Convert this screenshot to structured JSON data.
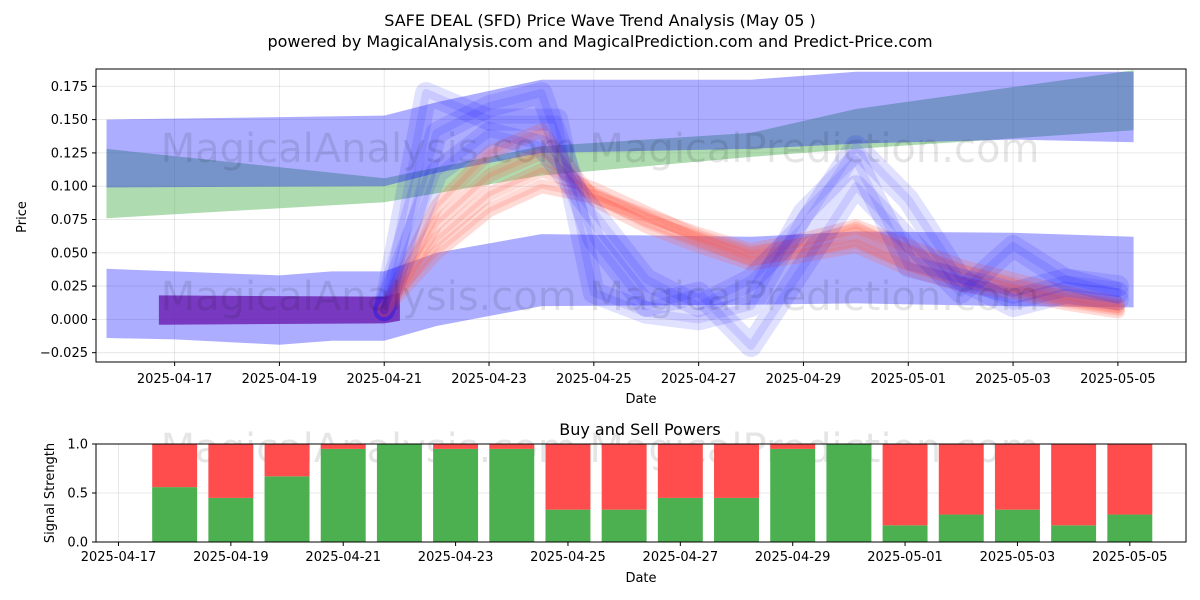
{
  "title_line1": "SAFE DEAL (SFD) Price Wave Trend Analysis (May 05 )",
  "title_line2": "powered by MagicalAnalysis.com and MagicalPrediction.com and Predict-Price.com",
  "watermark": "MagicalAnalysis.com   MagicalPrediction.com",
  "chart_data": [
    {
      "type": "area",
      "xlabel": "Date",
      "ylabel": "Price",
      "xlim": [
        "2025-04-15.5",
        "2025-05-06.3"
      ],
      "ylim": [
        -0.032,
        0.188
      ],
      "x_ticks": [
        "2025-04-17",
        "2025-04-19",
        "2025-04-21",
        "2025-04-23",
        "2025-04-25",
        "2025-04-27",
        "2025-04-29",
        "2025-05-01",
        "2025-05-03",
        "2025-05-05"
      ],
      "y_ticks": [
        "−0.025",
        "0.000",
        "0.025",
        "0.050",
        "0.075",
        "0.100",
        "0.125",
        "0.150",
        "0.175"
      ],
      "grid": true,
      "colors": {
        "green_band": "#4caf50",
        "blue_band": "#0000ff",
        "red_band": "#ff5a4a",
        "purple_band": "#6a1bb0"
      },
      "bands": {
        "green_upper": {
          "x": [
            "2025-04-15.7",
            "2025-04-21",
            "2025-04-24",
            "2025-04-28",
            "2025-04-30",
            "2025-05-05.3"
          ],
          "low": [
            0.076,
            0.088,
            0.108,
            0.122,
            0.128,
            0.142
          ],
          "high": [
            0.128,
            0.106,
            0.13,
            0.14,
            0.158,
            0.187
          ]
        },
        "blue_upper": {
          "x": [
            "2025-04-15.7",
            "2025-04-21",
            "2025-04-22",
            "2025-04-24",
            "2025-04-28",
            "2025-04-30",
            "2025-05-03",
            "2025-05-05.3"
          ],
          "low": [
            0.099,
            0.1,
            0.11,
            0.125,
            0.128,
            0.132,
            0.135,
            0.133
          ],
          "high": [
            0.15,
            0.153,
            0.163,
            0.18,
            0.18,
            0.186,
            0.186,
            0.186
          ]
        },
        "blue_lower": {
          "x": [
            "2025-04-15.7",
            "2025-04-17",
            "2025-04-19",
            "2025-04-20",
            "2025-04-21",
            "2025-04-22",
            "2025-04-24",
            "2025-04-28",
            "2025-04-30",
            "2025-05-03",
            "2025-05-05.3"
          ],
          "low": [
            -0.014,
            -0.015,
            -0.019,
            -0.016,
            -0.016,
            -0.005,
            0.01,
            0.011,
            0.012,
            0.01,
            0.009
          ],
          "high": [
            0.038,
            0.036,
            0.033,
            0.036,
            0.036,
            0.05,
            0.064,
            0.062,
            0.066,
            0.065,
            0.062
          ]
        },
        "purple_base": {
          "x": [
            "2025-04-16.7",
            "2025-04-21",
            "2025-04-21.3"
          ],
          "low": [
            -0.004,
            -0.003,
            -0.001
          ],
          "high": [
            0.018,
            0.017,
            0.02
          ]
        }
      },
      "wave_paths": [
        {
          "x": [
            "2025-04-21",
            "2025-04-22",
            "2025-04-23",
            "2025-04-24",
            "2025-04-25",
            "2025-04-26",
            "2025-04-27",
            "2025-04-28",
            "2025-04-29",
            "2025-04-30",
            "2025-05-01",
            "2025-05-02",
            "2025-05-03",
            "2025-05-04",
            "2025-05-05"
          ],
          "y": [
            0.007,
            0.072,
            0.108,
            0.125,
            0.093,
            0.075,
            0.06,
            0.045,
            0.052,
            0.06,
            0.042,
            0.03,
            0.022,
            0.014,
            0.008
          ]
        },
        {
          "x": [
            "2025-04-21",
            "2025-04-22",
            "2025-04-23",
            "2025-04-24",
            "2025-04-25",
            "2025-04-26",
            "2025-04-27",
            "2025-04-28",
            "2025-04-29",
            "2025-04-30",
            "2025-05-01",
            "2025-05-02",
            "2025-05-03",
            "2025-05-04",
            "2025-05-05"
          ],
          "y": [
            0.007,
            0.06,
            0.094,
            0.112,
            0.098,
            0.08,
            0.062,
            0.05,
            0.056,
            0.068,
            0.05,
            0.036,
            0.025,
            0.016,
            0.01
          ]
        },
        {
          "x": [
            "2025-04-21",
            "2025-04-22",
            "2025-04-23",
            "2025-04-24",
            "2025-04-25",
            "2025-04-26",
            "2025-04-27",
            "2025-04-28",
            "2025-04-29",
            "2025-04-30",
            "2025-05-01",
            "2025-05-02",
            "2025-05-03",
            "2025-05-04",
            "2025-05-05"
          ],
          "y": [
            0.007,
            0.085,
            0.125,
            0.142,
            0.09,
            0.07,
            0.055,
            0.042,
            0.048,
            0.055,
            0.038,
            0.026,
            0.02,
            0.012,
            0.006
          ]
        },
        {
          "x": [
            "2025-04-21",
            "2025-04-22",
            "2025-04-23",
            "2025-04-24",
            "2025-04-25",
            "2025-04-26",
            "2025-04-27",
            "2025-04-28",
            "2025-04-29",
            "2025-04-30",
            "2025-05-01",
            "2025-05-02",
            "2025-05-03",
            "2025-05-04",
            "2025-05-05"
          ],
          "y": [
            0.007,
            0.05,
            0.082,
            0.1,
            0.092,
            0.078,
            0.064,
            0.052,
            0.06,
            0.07,
            0.055,
            0.04,
            0.03,
            0.02,
            0.012
          ]
        },
        {
          "x": [
            "2025-04-21",
            "2025-04-21.8",
            "2025-04-23",
            "2025-04-24.3",
            "2025-04-25",
            "2025-04-26",
            "2025-04-27",
            "2025-04-28",
            "2025-04-29",
            "2025-04-30",
            "2025-05-01",
            "2025-05-02",
            "2025-05-03",
            "2025-05-04",
            "2025-05-05"
          ],
          "y": [
            0.007,
            0.17,
            0.15,
            0.15,
            0.02,
            0.005,
            0.0,
            0.01,
            0.08,
            0.12,
            0.04,
            0.03,
            0.02,
            0.03,
            0.025
          ]
        },
        {
          "x": [
            "2025-04-21",
            "2025-04-22",
            "2025-04-23",
            "2025-04-24",
            "2025-04-25",
            "2025-04-26",
            "2025-04-27",
            "2025-04-28",
            "2025-04-29",
            "2025-04-30",
            "2025-05-01",
            "2025-05-02",
            "2025-05-03",
            "2025-05-04",
            "2025-05-05"
          ],
          "y": [
            0.007,
            0.14,
            0.16,
            0.17,
            0.06,
            0.01,
            0.02,
            -0.02,
            0.04,
            0.1,
            0.06,
            0.02,
            0.055,
            0.03,
            0.02
          ]
        },
        {
          "x": [
            "2025-04-21",
            "2025-04-22",
            "2025-04-23",
            "2025-04-24",
            "2025-04-25",
            "2025-04-26",
            "2025-04-27",
            "2025-04-28",
            "2025-04-29",
            "2025-04-30",
            "2025-05-01",
            "2025-05-02",
            "2025-05-03",
            "2025-05-04",
            "2025-05-05"
          ],
          "y": [
            0.007,
            0.11,
            0.14,
            0.13,
            0.08,
            0.03,
            0.01,
            0.03,
            0.07,
            0.13,
            0.09,
            0.03,
            0.01,
            0.02,
            0.015
          ]
        }
      ]
    },
    {
      "type": "bar",
      "title": "Buy and Sell Powers",
      "xlabel": "Date",
      "ylabel": "Signal Strength",
      "ylim": [
        0,
        1
      ],
      "y_ticks": [
        "0.0",
        "0.5",
        "1.0"
      ],
      "x_ticks": [
        "2025-04-17",
        "2025-04-19",
        "2025-04-21",
        "2025-04-23",
        "2025-04-25",
        "2025-04-27",
        "2025-04-29",
        "2025-05-01",
        "2025-05-03",
        "2025-05-05"
      ],
      "categories": [
        "2025-04-18",
        "2025-04-19",
        "2025-04-20",
        "2025-04-21",
        "2025-04-22",
        "2025-04-23",
        "2025-04-24",
        "2025-04-25",
        "2025-04-26",
        "2025-04-27",
        "2025-04-28",
        "2025-04-29",
        "2025-04-30",
        "2025-05-01",
        "2025-05-02",
        "2025-05-03",
        "2025-05-04",
        "2025-05-05"
      ],
      "series": [
        {
          "color": "#4caf50",
          "values": [
            0.56,
            0.45,
            0.67,
            0.95,
            1.0,
            0.95,
            0.95,
            0.33,
            0.33,
            0.45,
            0.45,
            0.95,
            1.0,
            0.17,
            0.28,
            0.33,
            0.17,
            0.28
          ]
        },
        {
          "color": "#ff4d4d",
          "values": [
            0.44,
            0.55,
            0.33,
            0.05,
            0.0,
            0.05,
            0.05,
            0.67,
            0.67,
            0.55,
            0.55,
            0.05,
            0.0,
            0.83,
            0.72,
            0.67,
            0.83,
            0.72
          ]
        }
      ]
    }
  ]
}
